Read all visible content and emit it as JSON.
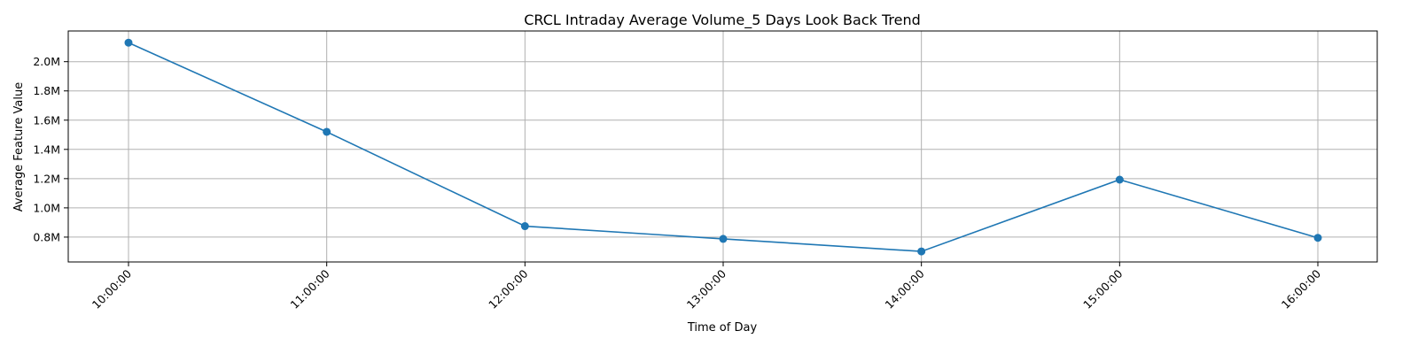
{
  "chart_data": {
    "type": "line",
    "title": "CRCL Intraday Average Volume_5 Days Look Back Trend",
    "xlabel": "Time of Day",
    "ylabel": "Average Feature Value",
    "categories": [
      "10:00:00",
      "11:00:00",
      "12:00:00",
      "13:00:00",
      "14:00:00",
      "15:00:00",
      "16:00:00"
    ],
    "series": [
      {
        "values": [
          2130000,
          1520000,
          875000,
          788000,
          702000,
          1193000,
          795000
        ]
      }
    ],
    "yticks": [
      800000,
      1000000,
      1200000,
      1400000,
      1600000,
      1800000,
      2000000
    ],
    "ytick_labels": [
      "0.8M",
      "1.0M",
      "1.2M",
      "1.4M",
      "1.6M",
      "1.8M",
      "2.0M"
    ],
    "ylim": [
      630000,
      2210000
    ],
    "grid": true,
    "marker": "circle",
    "line_color": "#1f77b4"
  }
}
